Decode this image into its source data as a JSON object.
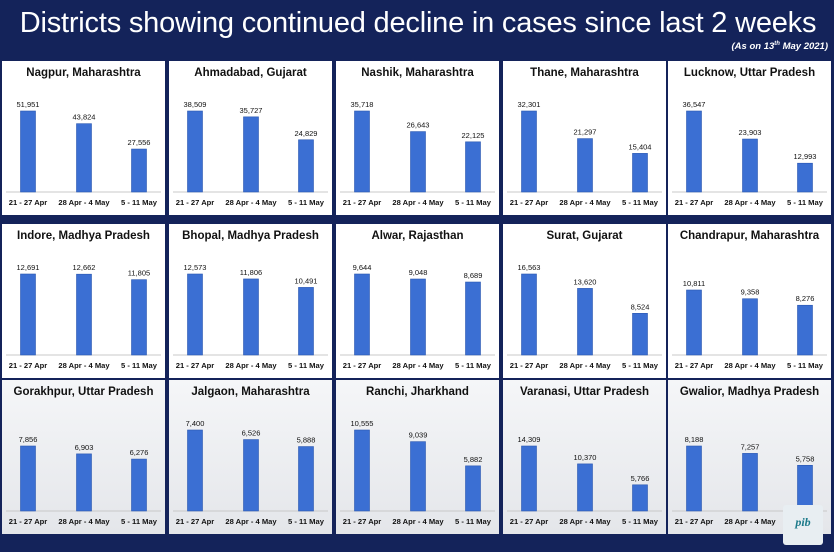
{
  "header": {
    "title": "Districts showing continued decline in cases since last 2 weeks",
    "subtitle_prefix": "(As on 13",
    "subtitle_sup": "th",
    "subtitle_suffix": " May 2021)"
  },
  "colors": {
    "background": "#14235a",
    "bar": "#3b6fd3"
  },
  "logo": {
    "text": "pib",
    "icon": "pib-logo-icon"
  },
  "chart_data": [
    {
      "type": "bar",
      "title": "Nagpur, Maharashtra",
      "categories": [
        "21 - 27 Apr",
        "28 Apr - 4 May",
        "5 - 11 May"
      ],
      "values": [
        51951,
        43824,
        27556
      ],
      "labels": [
        "51,951",
        "43,824",
        "27,556"
      ]
    },
    {
      "type": "bar",
      "title": "Ahmadabad, Gujarat",
      "categories": [
        "21 - 27 Apr",
        "28 Apr - 4 May",
        "5 - 11 May"
      ],
      "values": [
        38509,
        35727,
        24829
      ],
      "labels": [
        "38,509",
        "35,727",
        "24,829"
      ]
    },
    {
      "type": "bar",
      "title": "Nashik, Maharashtra",
      "categories": [
        "21 - 27 Apr",
        "28 Apr - 4 May",
        "5 - 11 May"
      ],
      "values": [
        35718,
        26643,
        22125
      ],
      "labels": [
        "35,718",
        "26,643",
        "22,125"
      ]
    },
    {
      "type": "bar",
      "title": "Thane, Maharashtra",
      "categories": [
        "21 - 27 Apr",
        "28 Apr - 4 May",
        "5 - 11 May"
      ],
      "values": [
        32301,
        21297,
        15404
      ],
      "labels": [
        "32,301",
        "21,297",
        "15,404"
      ]
    },
    {
      "type": "bar",
      "title": "Lucknow, Uttar Pradesh",
      "categories": [
        "21 - 27 Apr",
        "28 Apr - 4 May",
        "5 - 11 May"
      ],
      "values": [
        36547,
        23903,
        12993
      ],
      "labels": [
        "36,547",
        "23,903",
        "12,993"
      ]
    },
    {
      "type": "bar",
      "title": "Indore, Madhya Pradesh",
      "categories": [
        "21 - 27 Apr",
        "28 Apr - 4 May",
        "5 - 11 May"
      ],
      "values": [
        12691,
        12662,
        11805
      ],
      "labels": [
        "12,691",
        "12,662",
        "11,805"
      ]
    },
    {
      "type": "bar",
      "title": "Bhopal, Madhya Pradesh",
      "categories": [
        "21 - 27 Apr",
        "28 Apr - 4 May",
        "5 - 11 May"
      ],
      "values": [
        12573,
        11806,
        10491
      ],
      "labels": [
        "12,573",
        "11,806",
        "10,491"
      ]
    },
    {
      "type": "bar",
      "title": "Alwar, Rajasthan",
      "categories": [
        "21 - 27 Apr",
        "28 Apr - 4 May",
        "5 - 11 May"
      ],
      "values": [
        9644,
        9048,
        8689
      ],
      "labels": [
        "9,644",
        "9,048",
        "8,689"
      ]
    },
    {
      "type": "bar",
      "title": "Surat, Gujarat",
      "categories": [
        "21 - 27 Apr",
        "28 Apr - 4 May",
        "5 - 11 May"
      ],
      "values": [
        16563,
        13620,
        8524
      ],
      "labels": [
        "16,563",
        "13,620",
        "8,524"
      ]
    },
    {
      "type": "bar",
      "title": "Chandrapur, Maharashtra",
      "categories": [
        "21 - 27 Apr",
        "28 Apr - 4 May",
        "5 - 11 May"
      ],
      "values": [
        10811,
        9358,
        8276
      ],
      "labels": [
        "10,811",
        "9,358",
        "8,276"
      ]
    },
    {
      "type": "bar",
      "title": "Gorakhpur, Uttar Pradesh",
      "categories": [
        "21 - 27 Apr",
        "28 Apr - 4 May",
        "5 - 11 May"
      ],
      "values": [
        7856,
        6903,
        6276
      ],
      "labels": [
        "7,856",
        "6,903",
        "6,276"
      ]
    },
    {
      "type": "bar",
      "title": "Jalgaon, Maharashtra",
      "categories": [
        "21 - 27 Apr",
        "28 Apr - 4 May",
        "5 - 11 May"
      ],
      "values": [
        7400,
        6526,
        5888
      ],
      "labels": [
        "7,400",
        "6,526",
        "5,888"
      ]
    },
    {
      "type": "bar",
      "title": "Ranchi, Jharkhand",
      "categories": [
        "21 - 27 Apr",
        "28 Apr - 4 May",
        "5 - 11 May"
      ],
      "values": [
        10555,
        9039,
        5882
      ],
      "labels": [
        "10,555",
        "9,039",
        "5,882"
      ]
    },
    {
      "type": "bar",
      "title": "Varanasi, Uttar Pradesh",
      "categories": [
        "21 - 27 Apr",
        "28 Apr - 4 May",
        "5 - 11 May"
      ],
      "values": [
        14309,
        10370,
        5766
      ],
      "labels": [
        "14,309",
        "10,370",
        "5,766"
      ]
    },
    {
      "type": "bar",
      "title": "Gwalior, Madhya Pradesh",
      "categories": [
        "21 - 27 Apr",
        "28 Apr - 4 May",
        "5 - 11 May"
      ],
      "values": [
        8188,
        7257,
        5758
      ],
      "labels": [
        "8,188",
        "7,257",
        "5,758"
      ]
    }
  ]
}
